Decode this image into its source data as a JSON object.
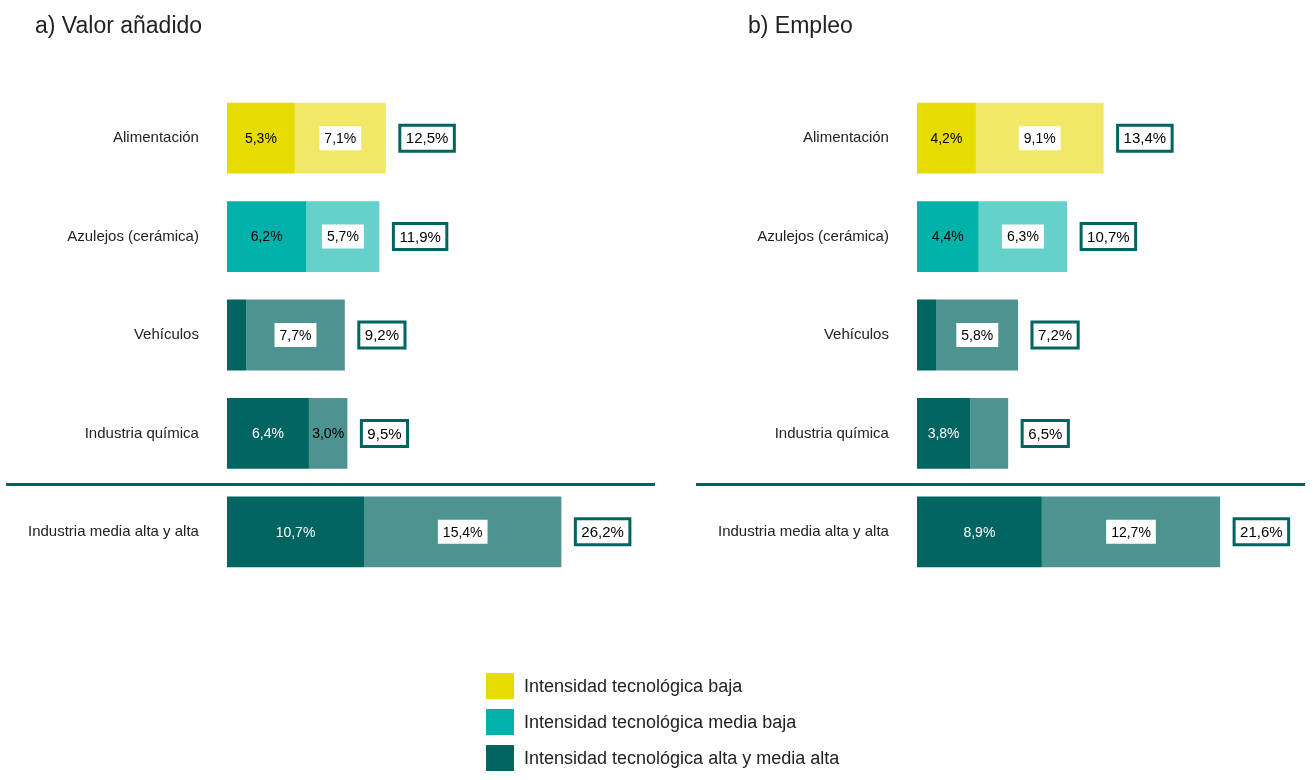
{
  "chart_data": [
    {
      "type": "bar",
      "title": "a) Valor añadido",
      "orientation": "horizontal",
      "stacked": true,
      "tick_labels": "y",
      "grid": false,
      "legend": "bottom",
      "categories": [
        "Alimentación",
        "Azulejos (cerámica)",
        "Vehículos",
        "Industria química",
        "Industria media alta y alta"
      ],
      "series": [
        {
          "name": "Intensidad tecnológica baja",
          "color": "#e6dc00",
          "values": [
            5.3,
            null,
            null,
            null,
            null
          ],
          "value_labels": [
            "5,3%",
            null,
            null,
            null,
            null
          ]
        },
        {
          "name": "Intensidad tecnológica media baja",
          "color": "#00b2a9",
          "values": [
            null,
            6.2,
            null,
            null,
            null
          ],
          "value_labels": [
            null,
            "6,2%",
            null,
            null,
            null
          ]
        },
        {
          "name": "Intensidad tecnológica alta y media alta",
          "color": "#006460",
          "values": [
            null,
            null,
            1.5,
            6.4,
            10.7
          ],
          "value_labels": [
            null,
            null,
            null,
            "6,4%",
            "10,7%"
          ]
        },
        {
          "color": "#f0e866",
          "line_style": "dotted",
          "values": [
            7.1,
            null,
            null,
            null,
            null
          ],
          "value_labels": [
            "7,1%",
            null,
            null,
            null,
            null
          ]
        },
        {
          "color": "#66d1cb",
          "line_style": "dotted",
          "values": [
            null,
            5.7,
            null,
            null,
            null
          ],
          "value_labels": [
            null,
            "5,7%",
            null,
            null,
            null
          ]
        },
        {
          "color": "#4d938f",
          "line_style": "dotted",
          "values": [
            null,
            null,
            7.7,
            3.0,
            15.4
          ],
          "value_labels": [
            null,
            null,
            "7,7%",
            "3,0%",
            "15,4%"
          ]
        }
      ],
      "totals": [
        "12,5%",
        "11,9%",
        "9,2%",
        "9,5%",
        "26,2%"
      ]
    },
    {
      "type": "bar",
      "title": "b) Empleo",
      "orientation": "horizontal",
      "stacked": true,
      "tick_labels": "y",
      "grid": false,
      "categories": [
        "Alimentación",
        "Azulejos (cerámica)",
        "Vehículos",
        "Industria química",
        "Industria media alta y alta"
      ],
      "series": [
        {
          "color": "#e6dc00",
          "values": [
            4.2,
            null,
            null,
            null,
            null
          ],
          "value_labels": [
            "4,2%",
            null,
            null,
            null,
            null
          ]
        },
        {
          "color": "#00b2a9",
          "values": [
            null,
            4.4,
            null,
            null,
            null
          ],
          "value_labels": [
            null,
            "4,4%",
            null,
            null,
            null
          ]
        },
        {
          "color": "#006460",
          "values": [
            null,
            null,
            1.4,
            3.8,
            8.9
          ],
          "value_labels": [
            null,
            null,
            null,
            "3,8%",
            "8,9%"
          ]
        },
        {
          "color": "#f0e866",
          "line_style": "dotted",
          "values": [
            9.1,
            null,
            null,
            null,
            null
          ],
          "value_labels": [
            "9,1%",
            null,
            null,
            null,
            null
          ]
        },
        {
          "color": "#66d1cb",
          "line_style": "dotted",
          "values": [
            null,
            6.3,
            null,
            null,
            null
          ],
          "value_labels": [
            null,
            "6,3%",
            null,
            null,
            null
          ]
        },
        {
          "color": "#4d938f",
          "line_style": "dotted",
          "values": [
            null,
            null,
            5.8,
            2.7,
            12.7
          ],
          "value_labels": [
            null,
            null,
            "5,8%",
            null,
            "12,7%"
          ]
        }
      ],
      "totals": [
        "13,4%",
        "10,7%",
        "7,2%",
        "6,5%",
        "21,6%"
      ]
    }
  ]
}
